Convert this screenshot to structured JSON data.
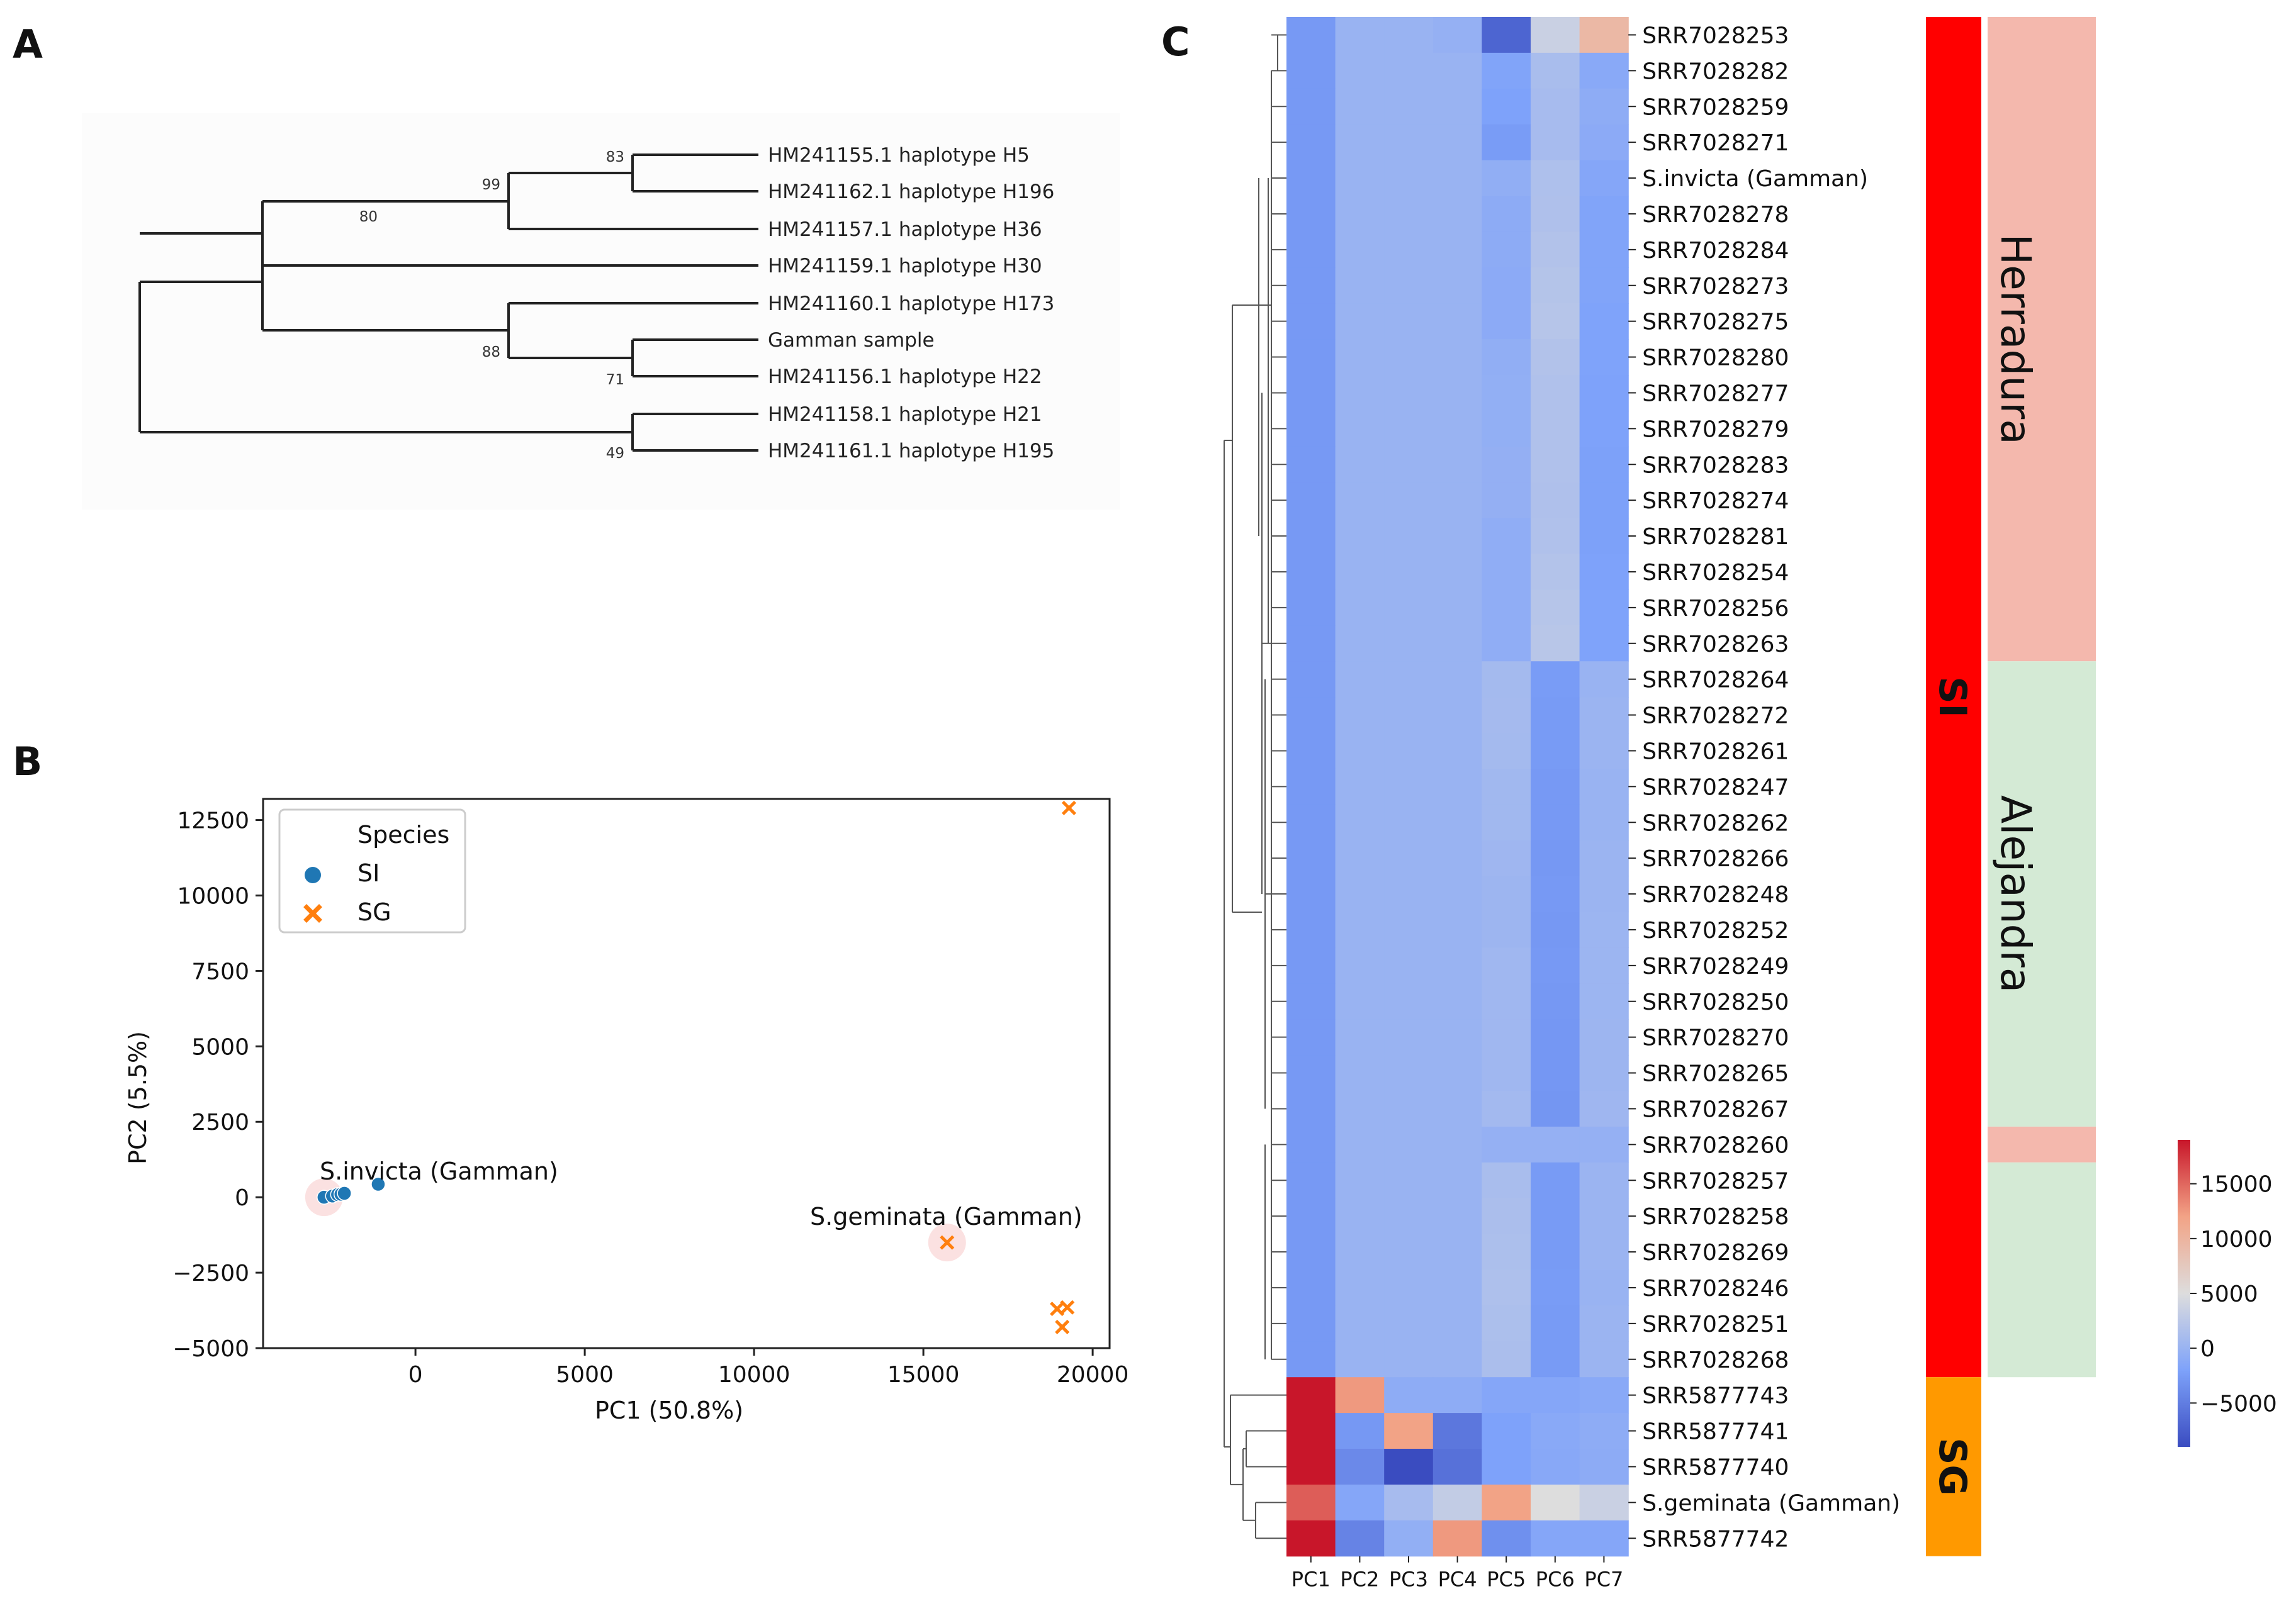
{
  "panel_labels": {
    "a": "A",
    "b": "B",
    "c": "C"
  },
  "chart_data": [
    {
      "type": "tree",
      "panel": "A",
      "tips": [
        "HM241155.1 haplotype H5",
        "HM241162.1 haplotype H196",
        "HM241157.1 haplotype H36",
        "HM241159.1 haplotype H30",
        "HM241160.1 haplotype H173",
        "Gamman sample",
        "HM241156.1 haplotype H22",
        "HM241158.1 haplotype H21",
        "HM241161.1 haplotype H195"
      ],
      "bootstrap": {
        "h5_h196": "83",
        "h5_h196_h36": "99",
        "upper_clade": "80",
        "h173_clade": "88",
        "gamman_h22": "71",
        "h21_h195": "49"
      }
    },
    {
      "type": "scatter",
      "panel": "B",
      "xlabel": "PC1 (50.8%)",
      "ylabel": "PC2 (5.5%)",
      "xlim": [
        -4500,
        20500
      ],
      "ylim": [
        -5000,
        13200
      ],
      "xticks": [
        0,
        5000,
        10000,
        15000,
        20000
      ],
      "xtick_labels": [
        "0",
        "5000",
        "10000",
        "15000",
        "20000"
      ],
      "yticks": [
        -5000,
        -2500,
        0,
        2500,
        5000,
        7500,
        10000,
        12500
      ],
      "ytick_labels": [
        "−5000",
        "−2500",
        "0",
        "2500",
        "5000",
        "7500",
        "10000",
        "12500"
      ],
      "legend": {
        "title": "Species",
        "position": "top-left",
        "entries": [
          {
            "label": "SI",
            "marker": "circle",
            "color": "#1f77b4"
          },
          {
            "label": "SG",
            "marker": "x",
            "color": "#ff7f0e"
          }
        ]
      },
      "series": [
        {
          "name": "SI",
          "color": "#1f77b4",
          "marker": "circle",
          "points": [
            {
              "x": -2700,
              "y": 0
            },
            {
              "x": -2450,
              "y": 40
            },
            {
              "x": -2300,
              "y": 90
            },
            {
              "x": -2200,
              "y": 100
            },
            {
              "x": -2100,
              "y": 130
            },
            {
              "x": -1100,
              "y": 430
            }
          ]
        },
        {
          "name": "SG",
          "color": "#ff7f0e",
          "marker": "x",
          "points": [
            {
              "x": 15700,
              "y": -1500
            },
            {
              "x": 19300,
              "y": 12900
            },
            {
              "x": 18950,
              "y": -3700
            },
            {
              "x": 19250,
              "y": -3650
            },
            {
              "x": 19100,
              "y": -4300
            }
          ]
        }
      ],
      "highlight_points": [
        {
          "x": -2700,
          "y": 0
        },
        {
          "x": 15700,
          "y": -1500
        }
      ],
      "annotations": [
        {
          "text": "S.invicta (Gamman)",
          "x": -2700,
          "y": 0
        },
        {
          "text": "S.geminata (Gamman)",
          "x": 15700,
          "y": -1500
        }
      ]
    },
    {
      "type": "heatmap",
      "panel": "C",
      "columns": [
        "PC1",
        "PC2",
        "PC3",
        "PC4",
        "PC5",
        "PC6",
        "PC7"
      ],
      "rows": [
        "SRR7028253",
        "SRR7028282",
        "SRR7028259",
        "SRR7028271",
        "S.invicta (Gamman)",
        "SRR7028278",
        "SRR7028284",
        "SRR7028273",
        "SRR7028275",
        "SRR7028280",
        "SRR7028277",
        "SRR7028279",
        "SRR7028283",
        "SRR7028274",
        "SRR7028281",
        "SRR7028254",
        "SRR7028256",
        "SRR7028263",
        "SRR7028264",
        "SRR7028272",
        "SRR7028261",
        "SRR7028247",
        "SRR7028262",
        "SRR7028266",
        "SRR7028248",
        "SRR7028252",
        "SRR7028249",
        "SRR7028250",
        "SRR7028270",
        "SRR7028265",
        "SRR7028267",
        "SRR7028260",
        "SRR7028257",
        "SRR7028258",
        "SRR7028269",
        "SRR7028246",
        "SRR7028251",
        "SRR7028268",
        "SRR5877743",
        "SRR5877741",
        "SRR5877740",
        "S.geminata (Gamman)",
        "SRR5877742"
      ],
      "values": [
        [
          -2700,
          0,
          0,
          -300,
          -7000,
          3500,
          9500
        ],
        [
          -2700,
          0,
          0,
          0,
          -1800,
          1200,
          -1200
        ],
        [
          -2700,
          0,
          0,
          0,
          -2000,
          1000,
          -800
        ],
        [
          -2700,
          0,
          0,
          0,
          -2500,
          1000,
          -1000
        ],
        [
          -2700,
          0,
          0,
          0,
          -600,
          1500,
          -1500
        ],
        [
          -2700,
          0,
          0,
          0,
          -900,
          1600,
          -1800
        ],
        [
          -2700,
          0,
          0,
          0,
          -900,
          1800,
          -1800
        ],
        [
          -2700,
          0,
          0,
          0,
          -1000,
          2000,
          -1800
        ],
        [
          -2700,
          0,
          0,
          0,
          -1000,
          2100,
          -1900
        ],
        [
          -2700,
          0,
          0,
          0,
          -600,
          1800,
          -1900
        ],
        [
          -2700,
          0,
          0,
          0,
          -500,
          1700,
          -2000
        ],
        [
          -2700,
          0,
          0,
          0,
          -500,
          1700,
          -2000
        ],
        [
          -2700,
          0,
          0,
          0,
          -400,
          1700,
          -2100
        ],
        [
          -2700,
          0,
          0,
          0,
          -400,
          1600,
          -2100
        ],
        [
          -2700,
          0,
          0,
          0,
          -700,
          1700,
          -2100
        ],
        [
          -2700,
          0,
          0,
          0,
          -700,
          1900,
          -2000
        ],
        [
          -2700,
          0,
          0,
          0,
          -700,
          2100,
          -1900
        ],
        [
          -2700,
          0,
          0,
          0,
          -700,
          2300,
          -1900
        ],
        [
          -2700,
          0,
          0,
          0,
          800,
          -2500,
          0
        ],
        [
          -2700,
          0,
          0,
          0,
          900,
          -2600,
          100
        ],
        [
          -2700,
          0,
          0,
          0,
          800,
          -2600,
          100
        ],
        [
          -2700,
          0,
          0,
          0,
          600,
          -2700,
          0
        ],
        [
          -2700,
          0,
          0,
          0,
          600,
          -2700,
          0
        ],
        [
          -2700,
          0,
          0,
          0,
          400,
          -2800,
          100
        ],
        [
          -2700,
          0,
          0,
          0,
          300,
          -2700,
          100
        ],
        [
          -2700,
          0,
          0,
          0,
          300,
          -2800,
          200
        ],
        [
          -2700,
          0,
          0,
          0,
          500,
          -2700,
          200
        ],
        [
          -2700,
          0,
          0,
          0,
          500,
          -2800,
          200
        ],
        [
          -2700,
          0,
          0,
          0,
          500,
          -2900,
          300
        ],
        [
          -2700,
          0,
          0,
          0,
          500,
          -2900,
          300
        ],
        [
          -2700,
          0,
          0,
          0,
          700,
          -3000,
          400
        ],
        [
          -2700,
          0,
          0,
          0,
          -300,
          -300,
          -300
        ],
        [
          -2700,
          0,
          0,
          0,
          1200,
          -2600,
          100
        ],
        [
          -2700,
          0,
          0,
          0,
          1300,
          -2600,
          100
        ],
        [
          -2700,
          0,
          0,
          0,
          1400,
          -2600,
          100
        ],
        [
          -2700,
          0,
          0,
          0,
          1500,
          -2500,
          0
        ],
        [
          -2700,
          0,
          0,
          0,
          1400,
          -2600,
          100
        ],
        [
          -2700,
          0,
          0,
          0,
          1300,
          -2600,
          100
        ],
        [
          19000,
          12500,
          -800,
          -800,
          -1500,
          -1500,
          -1200
        ],
        [
          19000,
          -2800,
          12000,
          -5500,
          -2000,
          -1200,
          -800
        ],
        [
          19000,
          -4000,
          -9000,
          -6000,
          -2000,
          -1300,
          -900
        ],
        [
          15500,
          -1500,
          1000,
          3000,
          12000,
          5000,
          3500
        ],
        [
          19000,
          -4500,
          -500,
          12500,
          -3500,
          -1500,
          -1500
        ]
      ],
      "colorbar": {
        "min": -9000,
        "max": 19000,
        "ticks": [
          -5000,
          0,
          5000,
          10000,
          15000
        ],
        "tick_labels": [
          "−5000",
          "0",
          "5000",
          "10000",
          "15000"
        ]
      },
      "species_annotation": [
        {
          "label": "SI",
          "color": "#ff0000",
          "from": "SRR7028253",
          "to": "SRR7028268"
        },
        {
          "label": "SG",
          "color": "#ff9900",
          "from": "SRR5877743",
          "to": "SRR5877742"
        }
      ],
      "location_annotation": [
        {
          "label": "Herradura",
          "color": "#f4b8ad",
          "from": "SRR7028253",
          "to": "SRR7028263"
        },
        {
          "label": "Alejandra",
          "color": "#d4ead5",
          "from": "SRR7028264",
          "to": "SRR7028267"
        },
        {
          "label": "",
          "color": "#f4b8ad",
          "from": "SRR7028260",
          "to": "SRR7028260"
        },
        {
          "label": "",
          "color": "#d4ead5",
          "from": "SRR7028257",
          "to": "SRR7028268"
        }
      ]
    }
  ]
}
